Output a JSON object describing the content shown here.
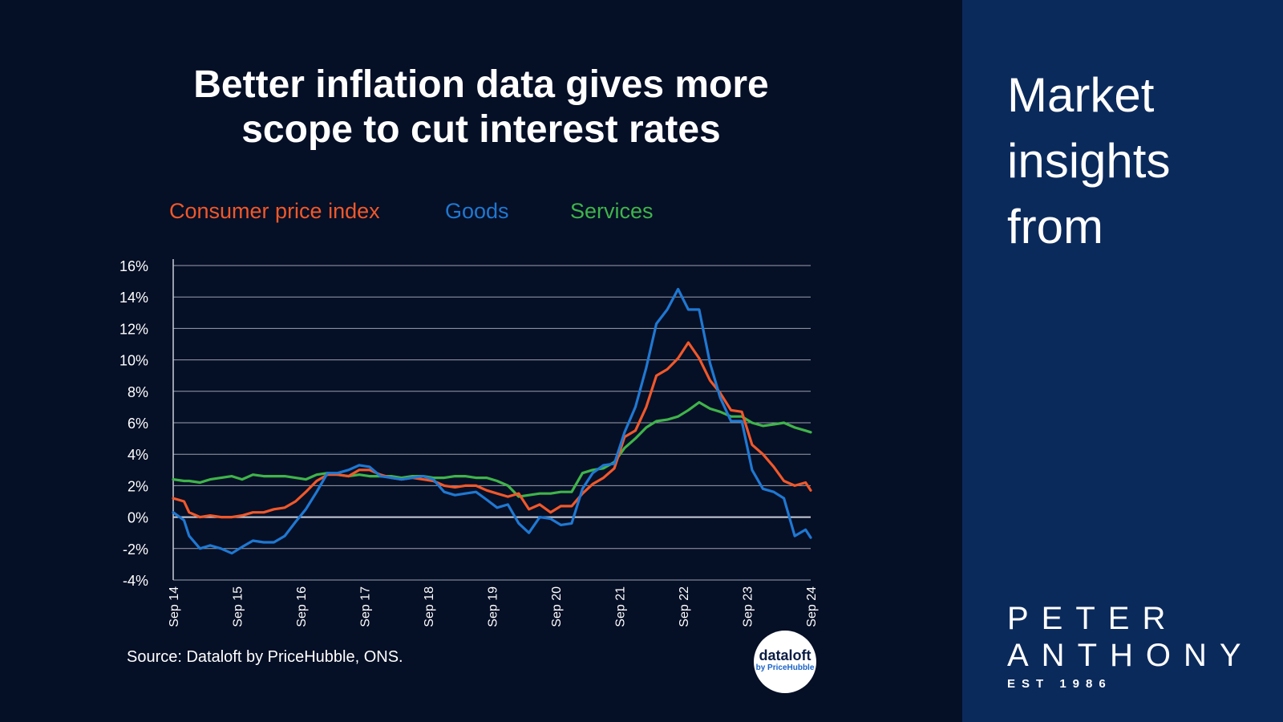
{
  "sidebar": {
    "heading_line1": "Market",
    "heading_line2": "insights",
    "heading_line3": "from",
    "brand_line1": "PETER",
    "brand_line2": "ANTHONY",
    "brand_tagline": "EST 1986"
  },
  "badge": {
    "line1": "dataloft",
    "line2": "by PriceHubble"
  },
  "source": "Source: Dataloft by PriceHubble, ONS.",
  "colors": {
    "cpi": "#f0582a",
    "goods": "#1f78d1",
    "services": "#3fb44a",
    "background": "#050f26",
    "sidebar": "#0b2a5c"
  },
  "chart_data": {
    "type": "line",
    "title": "Better inflation data gives more scope to cut interest rates",
    "title_line1": "Better inflation data gives more",
    "title_line2": "scope to cut interest rates",
    "y_ticks": [
      "16%",
      "14%",
      "12%",
      "10%",
      "8%",
      "6%",
      "4%",
      "2%",
      "0%",
      "-2%",
      "-4%"
    ],
    "y_tick_values": [
      16,
      14,
      12,
      10,
      8,
      6,
      4,
      2,
      0,
      -2,
      -4
    ],
    "ylim": [
      -4,
      16
    ],
    "x_ticks": [
      "Sep 14",
      "Sep 15",
      "Sep 16",
      "Sep 17",
      "Sep 18",
      "Sep 19",
      "Sep 20",
      "Sep 21",
      "Sep 22",
      "Sep 23",
      "Sep 24"
    ],
    "x_tick_values": [
      2014.75,
      2015.75,
      2016.75,
      2017.75,
      2018.75,
      2019.75,
      2020.75,
      2021.75,
      2022.75,
      2023.75,
      2024.75
    ],
    "xlim": [
      2014.75,
      2024.75
    ],
    "grid": true,
    "legend_position": "top",
    "series": [
      {
        "name": "Consumer price index",
        "color": "#f0582a",
        "x": [
          2014.75,
          2014.92,
          2015.0,
          2015.17,
          2015.33,
          2015.5,
          2015.67,
          2015.83,
          2016.0,
          2016.17,
          2016.33,
          2016.5,
          2016.67,
          2016.83,
          2017.0,
          2017.17,
          2017.33,
          2017.5,
          2017.67,
          2017.83,
          2018.0,
          2018.17,
          2018.33,
          2018.5,
          2018.67,
          2018.83,
          2019.0,
          2019.17,
          2019.33,
          2019.5,
          2019.67,
          2019.83,
          2020.0,
          2020.17,
          2020.33,
          2020.5,
          2020.67,
          2020.83,
          2021.0,
          2021.17,
          2021.33,
          2021.5,
          2021.67,
          2021.83,
          2022.0,
          2022.17,
          2022.33,
          2022.5,
          2022.67,
          2022.83,
          2023.0,
          2023.17,
          2023.33,
          2023.5,
          2023.67,
          2023.83,
          2024.0,
          2024.17,
          2024.33,
          2024.5,
          2024.67,
          2024.75
        ],
        "y": [
          1.2,
          1.0,
          0.3,
          0.0,
          0.1,
          0.0,
          0.0,
          0.1,
          0.3,
          0.3,
          0.5,
          0.6,
          1.0,
          1.6,
          2.3,
          2.7,
          2.7,
          2.6,
          3.0,
          3.0,
          2.7,
          2.5,
          2.4,
          2.5,
          2.4,
          2.3,
          2.0,
          1.9,
          2.0,
          2.0,
          1.7,
          1.5,
          1.3,
          1.5,
          0.5,
          0.8,
          0.3,
          0.7,
          0.7,
          1.5,
          2.1,
          2.5,
          3.1,
          5.1,
          5.5,
          7.0,
          9.0,
          9.4,
          10.1,
          11.1,
          10.1,
          8.7,
          7.9,
          6.8,
          6.7,
          4.6,
          4.0,
          3.2,
          2.3,
          2.0,
          2.2,
          1.7
        ]
      },
      {
        "name": "Goods",
        "color": "#1f78d1",
        "x": [
          2014.75,
          2014.92,
          2015.0,
          2015.17,
          2015.33,
          2015.5,
          2015.67,
          2015.83,
          2016.0,
          2016.17,
          2016.33,
          2016.5,
          2016.67,
          2016.83,
          2017.0,
          2017.17,
          2017.33,
          2017.5,
          2017.67,
          2017.83,
          2018.0,
          2018.17,
          2018.33,
          2018.5,
          2018.67,
          2018.83,
          2019.0,
          2019.17,
          2019.33,
          2019.5,
          2019.67,
          2019.83,
          2020.0,
          2020.17,
          2020.33,
          2020.5,
          2020.67,
          2020.83,
          2021.0,
          2021.17,
          2021.33,
          2021.5,
          2021.67,
          2021.83,
          2022.0,
          2022.17,
          2022.33,
          2022.5,
          2022.67,
          2022.83,
          2023.0,
          2023.17,
          2023.33,
          2023.5,
          2023.67,
          2023.83,
          2024.0,
          2024.17,
          2024.33,
          2024.5,
          2024.67,
          2024.75
        ],
        "y": [
          0.3,
          -0.2,
          -1.2,
          -2.0,
          -1.8,
          -2.0,
          -2.3,
          -1.9,
          -1.5,
          -1.6,
          -1.6,
          -1.2,
          -0.3,
          0.5,
          1.6,
          2.8,
          2.8,
          3.0,
          3.3,
          3.2,
          2.6,
          2.5,
          2.4,
          2.5,
          2.6,
          2.4,
          1.6,
          1.4,
          1.5,
          1.6,
          1.1,
          0.6,
          0.8,
          -0.4,
          -1.0,
          0.0,
          -0.1,
          -0.5,
          -0.4,
          1.8,
          2.8,
          3.3,
          3.4,
          5.4,
          7.0,
          9.5,
          12.3,
          13.2,
          14.5,
          13.2,
          13.2,
          9.8,
          7.6,
          6.1,
          6.1,
          3.0,
          1.8,
          1.6,
          1.2,
          -1.2,
          -0.8,
          -1.3
        ]
      },
      {
        "name": "Services",
        "color": "#3fb44a",
        "x": [
          2014.75,
          2014.92,
          2015.0,
          2015.17,
          2015.33,
          2015.5,
          2015.67,
          2015.83,
          2016.0,
          2016.17,
          2016.33,
          2016.5,
          2016.67,
          2016.83,
          2017.0,
          2017.17,
          2017.33,
          2017.5,
          2017.67,
          2017.83,
          2018.0,
          2018.17,
          2018.33,
          2018.5,
          2018.67,
          2018.83,
          2019.0,
          2019.17,
          2019.33,
          2019.5,
          2019.67,
          2019.83,
          2020.0,
          2020.17,
          2020.33,
          2020.5,
          2020.67,
          2020.83,
          2021.0,
          2021.17,
          2021.33,
          2021.5,
          2021.67,
          2021.83,
          2022.0,
          2022.17,
          2022.33,
          2022.5,
          2022.67,
          2022.83,
          2023.0,
          2023.17,
          2023.33,
          2023.5,
          2023.67,
          2023.83,
          2024.0,
          2024.17,
          2024.33,
          2024.5,
          2024.67,
          2024.75
        ],
        "y": [
          2.4,
          2.3,
          2.3,
          2.2,
          2.4,
          2.5,
          2.6,
          2.4,
          2.7,
          2.6,
          2.6,
          2.6,
          2.5,
          2.4,
          2.7,
          2.8,
          2.7,
          2.6,
          2.7,
          2.6,
          2.6,
          2.6,
          2.5,
          2.6,
          2.6,
          2.5,
          2.5,
          2.6,
          2.6,
          2.5,
          2.5,
          2.3,
          2.0,
          1.3,
          1.4,
          1.5,
          1.5,
          1.6,
          1.6,
          2.8,
          3.0,
          3.1,
          3.5,
          4.4,
          5.0,
          5.7,
          6.1,
          6.2,
          6.4,
          6.8,
          7.3,
          6.9,
          6.7,
          6.4,
          6.4,
          6.0,
          5.8,
          5.9,
          6.0,
          5.7,
          5.5,
          5.4
        ]
      }
    ]
  }
}
